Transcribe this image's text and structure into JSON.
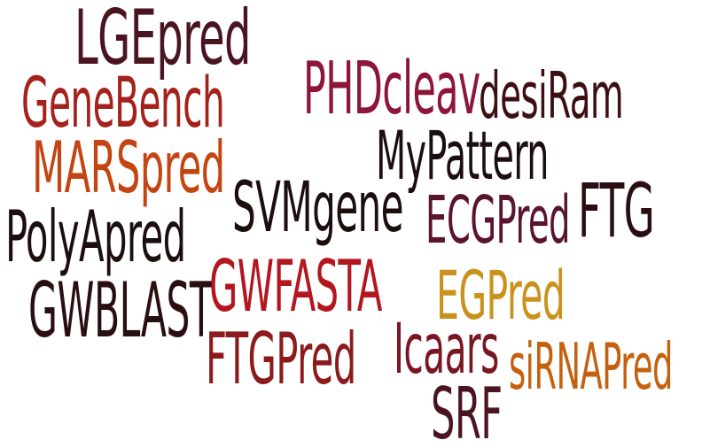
{
  "words": [
    {
      "text": "LGEpred",
      "color": "#4a1420"
    },
    {
      "text": "GeneBench",
      "color": "#a5221c"
    },
    {
      "text": "MARSpred",
      "color": "#c44512"
    },
    {
      "text": "PolyApred",
      "color": "#1c0e0e"
    },
    {
      "text": "GWBLAST",
      "color": "#2a0f12"
    },
    {
      "text": "PHDcleav",
      "color": "#8c1538"
    },
    {
      "text": "desiRam",
      "color": "#3d0e12"
    },
    {
      "text": "MyPattern",
      "color": "#1c0e0e"
    },
    {
      "text": "SVMgene",
      "color": "#1c0e0e"
    },
    {
      "text": "ECGPred",
      "color": "#5a1430"
    },
    {
      "text": "FTG",
      "color": "#2a0f12"
    },
    {
      "text": "GWFASTA",
      "color": "#b3161f"
    },
    {
      "text": "EGPred",
      "color": "#c9921c"
    },
    {
      "text": "FTGPred",
      "color": "#8c1a1c"
    },
    {
      "text": "Icaars",
      "color": "#7a1622"
    },
    {
      "text": "siRNAPred",
      "color": "#c4610e"
    },
    {
      "text": "SRF",
      "color": "#4a1420"
    }
  ]
}
